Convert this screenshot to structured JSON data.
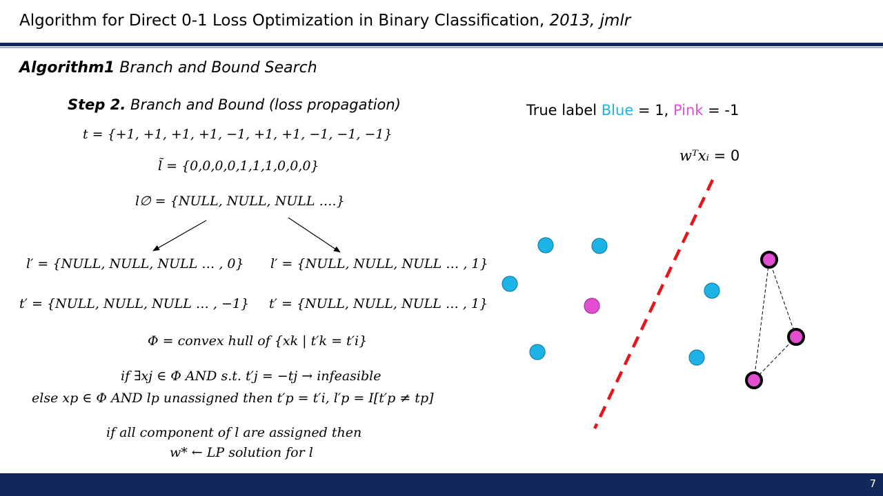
{
  "slide": {
    "title": "Algorithm for Direct 0-1 Loss Optimization in Binary Classification,",
    "title_year": "2013, jmlr",
    "page_number": "7"
  },
  "algorithm": {
    "name": "Algorithm1",
    "subtitle": "Branch and Bound Search"
  },
  "step": {
    "label": "Step 2.",
    "text": "Branch and Bound (loss propagation)"
  },
  "math": {
    "t_vector": "t = {+1, +1, +1, +1, −1, +1, +1, −1, −1, −1}",
    "l_tilde": "l̃ = {0,0,0,0,1,1,1,0,0,0}",
    "l_empty": "l∅ = {NULL, NULL, NULL ….}",
    "l_prime_left": "l′ = {NULL, NULL, NULL … , 0}",
    "l_prime_right": "l′ = {NULL, NULL, NULL … , 1}",
    "t_prime_left": "t′ = {NULL, NULL, NULL … , −1}",
    "t_prime_right": "t′ = {NULL, NULL, NULL … , 1}",
    "phi": "Φ = convex hull of {xk | t′k = t′i}",
    "if_line": "if ∃xj ∈ Φ AND s.t. t′j = −tj → infeasible",
    "else_line": "else xp ∈ Φ AND lp unassigned then t′p = t′i, l′p = I[t′p ≠ tp]",
    "all_line": "if all component of l are assigned then",
    "lp_line": "w* ← LP solution for l"
  },
  "legend": {
    "prefix": "True label",
    "blue_word": "Blue",
    "blue_value": "= 1,",
    "pink_word": "Pink",
    "pink_value": "= -1"
  },
  "boundary": {
    "expr": "wᵀxᵢ",
    "value": "= 0"
  },
  "colors": {
    "blue": "#1cb3e6",
    "pink": "#e24ed0",
    "boundary": "#e8141c",
    "navy": "#12285a"
  }
}
